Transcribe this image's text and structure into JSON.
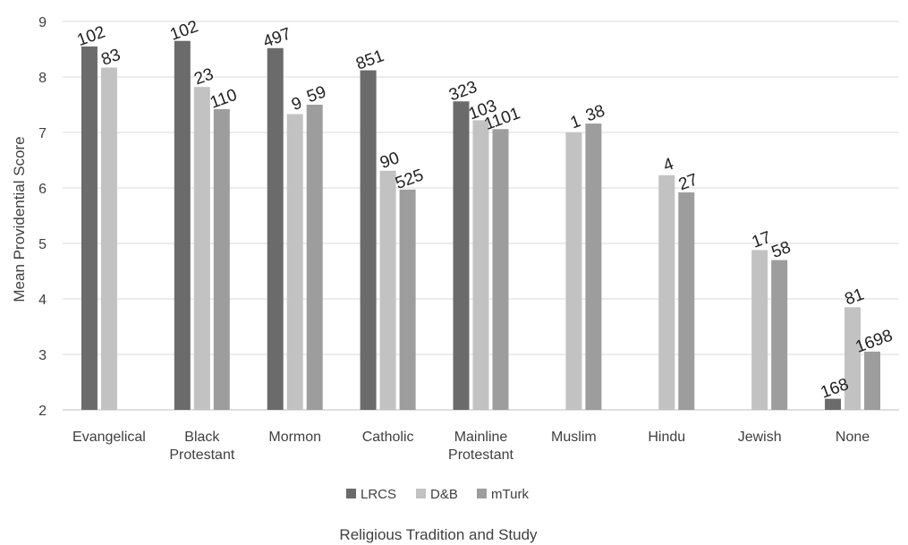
{
  "chart_data": {
    "type": "bar",
    "ylabel": "Mean Providential Score",
    "xlabel": "Religious Tradition and Study",
    "ylim": [
      2,
      9
    ],
    "yticks": [
      2,
      3,
      4,
      5,
      6,
      7,
      8,
      9
    ],
    "grid": true,
    "legend_position": "bottom",
    "categories": [
      [
        "Evangelical"
      ],
      [
        "Black",
        "Protestant"
      ],
      [
        "Mormon"
      ],
      [
        "Catholic"
      ],
      [
        "Mainline",
        "Protestant"
      ],
      [
        "Muslim"
      ],
      [
        "Hindu"
      ],
      [
        "Jewish"
      ],
      [
        "None"
      ]
    ],
    "series": [
      {
        "name": "LRCS",
        "color": "#6b6b6b",
        "values": [
          8.55,
          8.65,
          8.52,
          8.12,
          7.56,
          null,
          null,
          null,
          2.2
        ],
        "labels": [
          "102",
          "102",
          "497",
          "851",
          "323",
          "",
          "",
          "",
          "168"
        ]
      },
      {
        "name": "D&B",
        "color": "#c2c2c2",
        "values": [
          8.17,
          7.82,
          7.33,
          6.31,
          7.22,
          7.0,
          6.23,
          4.88,
          3.85
        ],
        "labels": [
          "83",
          "23",
          "9",
          "90",
          "103",
          "1",
          "4",
          "17",
          "81"
        ]
      },
      {
        "name": "mTurk",
        "color": "#9d9d9d",
        "values": [
          null,
          7.42,
          7.5,
          5.97,
          7.06,
          7.16,
          5.92,
          4.7,
          3.05
        ],
        "labels": [
          "",
          "110",
          "59",
          "525",
          "1101",
          "38",
          "27",
          "58",
          "1698"
        ]
      }
    ]
  }
}
